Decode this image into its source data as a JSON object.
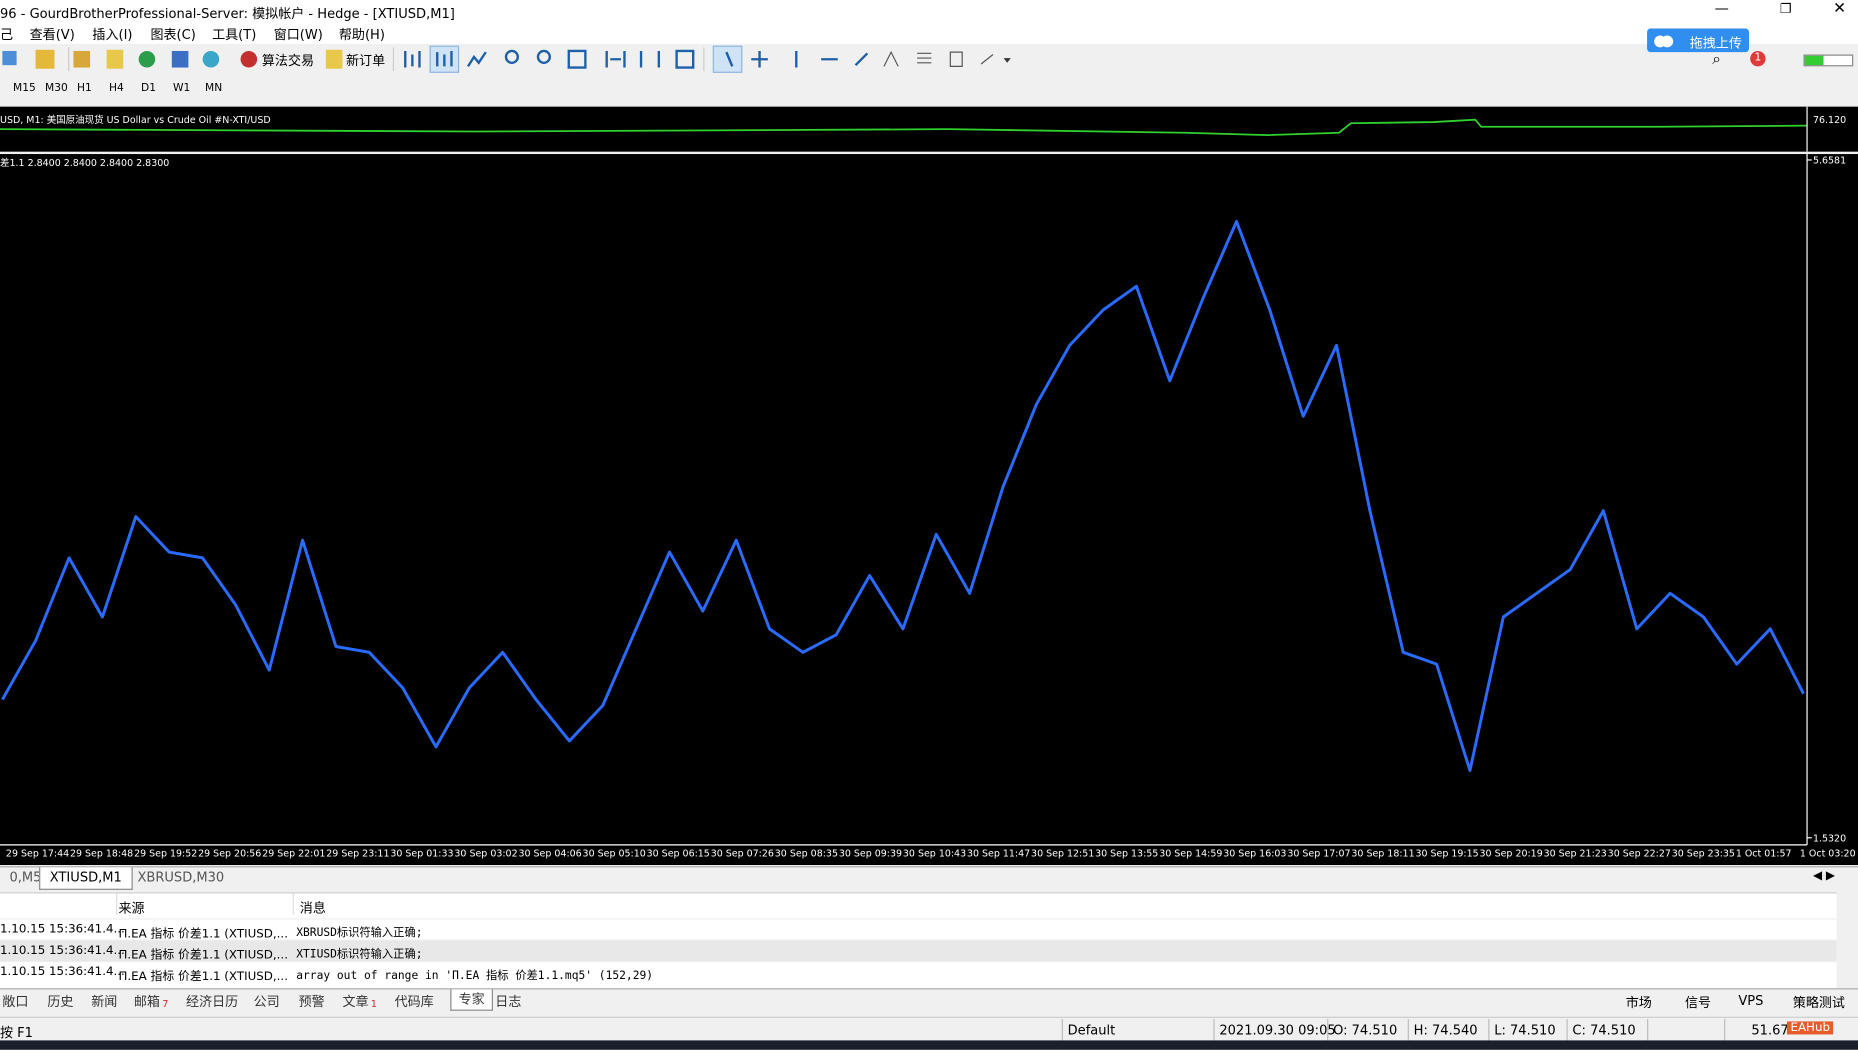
{
  "window": {
    "title": "96 - GourdBrotherProfessional-Server: 模拟帐户 - Hedge - [XTIUSD,M1]"
  },
  "menu": [
    "己",
    "查看(V)",
    "插入(I)",
    "图表(C)",
    "工具(T)",
    "窗口(W)",
    "帮助(H)"
  ],
  "toolbar": {
    "algo_trading": "算法交易",
    "new_order": "新订单",
    "upload": "拖拽上传",
    "badge": "1"
  },
  "timeframes": [
    "M15",
    "M30",
    "H1",
    "H4",
    "D1",
    "W1",
    "MN"
  ],
  "indicator": {
    "label": "USD, M1:  美国原油现货 US Dollar vs Crude Oil #N-XTI/USD",
    "value": "76.120"
  },
  "price_chart": {
    "type": "line",
    "label": "差1.1 2.8400 2.8400 2.8400 2.8300",
    "yticks": [
      {
        "value": 1.532,
        "label": "1.5320"
      },
      5.6581
    ],
    "values": [
      2.373,
      2.732,
      3.236,
      2.876,
      3.487,
      3.271,
      3.236,
      2.948,
      2.553,
      3.343,
      2.696,
      2.661,
      2.445,
      2.085,
      2.445,
      2.661,
      2.373,
      2.121,
      2.337,
      2.804,
      3.271,
      2.912,
      3.343,
      2.804,
      2.661,
      2.768,
      3.128,
      2.804,
      3.379,
      3.02,
      3.667,
      4.17,
      4.529,
      4.745,
      4.889,
      4.314,
      4.817,
      5.284,
      4.745,
      4.098,
      4.529,
      3.523,
      2.661,
      2.589,
      1.942,
      2.876,
      3.02,
      3.164,
      3.523,
      2.804,
      3.02,
      2.876,
      2.589,
      2.804,
      2.409
    ],
    "xlabels": [
      "29 Sep 17:44",
      "29 Sep 18:48",
      "29 Sep 19:52",
      "29 Sep 20:56",
      "29 Sep 22:01",
      "29 Sep 23:11",
      "30 Sep 01:33",
      "30 Sep 03:02",
      "30 Sep 04:06",
      "30 Sep 05:10",
      "30 Sep 06:15",
      "30 Sep 07:26",
      "30 Sep 08:35",
      "30 Sep 09:39",
      "30 Sep 10:43",
      "30 Sep 11:47",
      "30 Sep 12:51",
      "30 Sep 13:55",
      "30 Sep 14:59",
      "30 Sep 16:03",
      "30 Sep 17:07",
      "30 Sep 18:11",
      "30 Sep 19:15",
      "30 Sep 20:19",
      "30 Sep 21:23",
      "30 Sep 22:27",
      "30 Sep 23:35",
      "1 Oct 01:57",
      "1 Oct 03:20"
    ],
    "color": "#2a6bff"
  },
  "chart_tabs": [
    "0,M5",
    "XTIUSD,M1",
    "XBRUSD,M30"
  ],
  "log": {
    "columns": [
      "来源",
      "消息"
    ],
    "rows": [
      [
        "1.10.15 15:36:41.4...",
        "П.EA 指标 价差1.1 (XTIUSD,...",
        "XBRUSD标识符输入正确;"
      ],
      [
        "1.10.15 15:36:41.4...",
        "П.EA 指标 价差1.1 (XTIUSD,...",
        "XTIUSD标识符输入正确;"
      ],
      [
        "1.10.15 15:36:41.4...",
        "П.EA 指标 价差1.1 (XTIUSD,...",
        "array out of range in 'П.EA 指标 价差1.1.mq5' (152,29)"
      ]
    ]
  },
  "toolbox_tabs": [
    {
      "label": "敞口"
    },
    {
      "label": "历史"
    },
    {
      "label": "新闻"
    },
    {
      "label": "邮箱",
      "badge": "7"
    },
    {
      "label": "经济日历"
    },
    {
      "label": "公司"
    },
    {
      "label": "预警"
    },
    {
      "label": "文章",
      "badge": "1"
    },
    {
      "label": "代码库"
    },
    {
      "label": "专家"
    },
    {
      "label": "日志"
    }
  ],
  "toolbox_right": [
    "市场",
    "信号",
    "VPS",
    "策略测试"
  ],
  "status": {
    "help": "按 F1",
    "profile": "Default",
    "datetime": "2021.09.30 09:05",
    "open": "O: 74.510",
    "high": "H: 74.540",
    "low": "L: 74.510",
    "close": "C: 74.510",
    "ping": "51.67",
    "watermark": "EAHub"
  }
}
